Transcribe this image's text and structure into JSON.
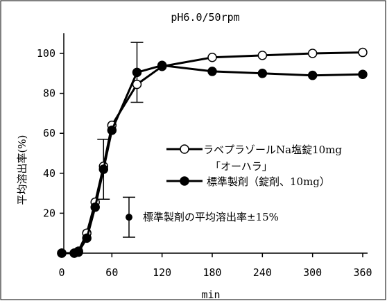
{
  "chart_data": {
    "type": "line",
    "title": "pH6.0/50rpm",
    "xlabel": "min",
    "ylabel": "平均溶出率(%)",
    "xlim": [
      0,
      370
    ],
    "ylim": [
      0,
      110
    ],
    "xticks": [
      0,
      60,
      120,
      180,
      240,
      300,
      360
    ],
    "yticks": [
      20,
      40,
      60,
      80,
      100
    ],
    "grid": false,
    "legend_position": "right",
    "series": [
      {
        "name": "ラベプラゾールNa塩錠10mg 「オーハラ」",
        "legend_line1": "ラベプラゾールNa塩錠10mg",
        "legend_line2": "「オーハラ」",
        "marker": "open-circle",
        "x": [
          0,
          15,
          20,
          30,
          40,
          50,
          60,
          90,
          120,
          180,
          240,
          300,
          360
        ],
        "y": [
          0,
          0,
          1,
          10,
          25.5,
          43.5,
          64,
          84.5,
          93.5,
          98,
          99,
          100,
          100.5
        ]
      },
      {
        "name": "標準製剤（錠剤、10mg）",
        "marker": "filled-circle",
        "x": [
          0,
          15,
          20,
          30,
          40,
          50,
          60,
          90,
          120,
          180,
          240,
          300,
          360
        ],
        "y": [
          0,
          0,
          0.5,
          7.5,
          23,
          42,
          61.5,
          90.5,
          94,
          91,
          90,
          89,
          89.5
        ]
      }
    ],
    "error_bars": {
      "label": "標準製剤の平均溶出率±15%",
      "bars": [
        {
          "x": 50,
          "low": 27,
          "high": 57
        },
        {
          "x": 90,
          "low": 75.5,
          "high": 105.5
        }
      ],
      "legend_sample": {
        "center": 18,
        "low": 8,
        "high": 28
      }
    }
  }
}
